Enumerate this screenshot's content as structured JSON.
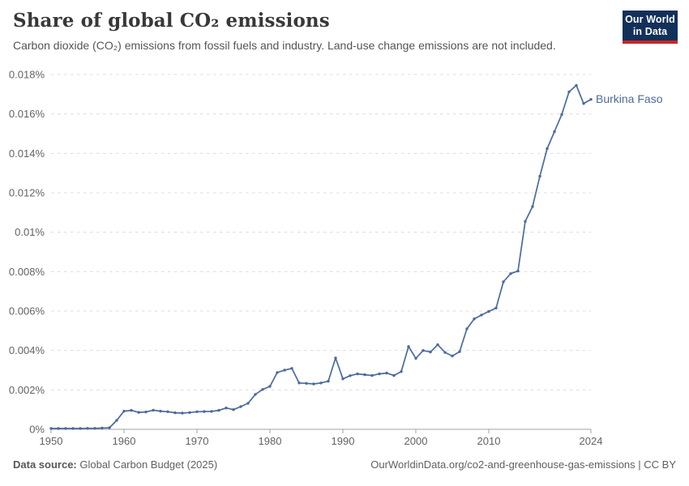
{
  "header": {
    "title": "Share of global CO₂ emissions",
    "subtitle": "Carbon dioxide (CO₂) emissions from fossil fuels and industry. Land-use change emissions are not included.",
    "logo": {
      "line1": "Our World",
      "line2": "in Data"
    }
  },
  "footer": {
    "source_label": "Data source:",
    "source_value": " Global Carbon Budget (2025)",
    "credit": "OurWorldinData.org/co2-and-greenhouse-gas-emissions | CC BY"
  },
  "chart_data": {
    "type": "line",
    "title": "Share of global CO₂ emissions",
    "xlabel": "",
    "ylabel": "",
    "xlim": [
      1950,
      2024
    ],
    "ylim": [
      0,
      0.018
    ],
    "grid": true,
    "line_color": "#4C6A9C",
    "xticks": [
      {
        "value": 1950,
        "label": "1950"
      },
      {
        "value": 1960,
        "label": "1960"
      },
      {
        "value": 1970,
        "label": "1970"
      },
      {
        "value": 1980,
        "label": "1980"
      },
      {
        "value": 1990,
        "label": "1990"
      },
      {
        "value": 2000,
        "label": "2000"
      },
      {
        "value": 2010,
        "label": "2010"
      },
      {
        "value": 2024,
        "label": "2024"
      }
    ],
    "yticks": [
      {
        "value": 0,
        "label": "0%"
      },
      {
        "value": 0.002,
        "label": "0.002%"
      },
      {
        "value": 0.004,
        "label": "0.004%"
      },
      {
        "value": 0.006,
        "label": "0.006%"
      },
      {
        "value": 0.008,
        "label": "0.008%"
      },
      {
        "value": 0.01,
        "label": "0.01%"
      },
      {
        "value": 0.012,
        "label": "0.012%"
      },
      {
        "value": 0.014,
        "label": "0.014%"
      },
      {
        "value": 0.016,
        "label": "0.016%"
      },
      {
        "value": 0.018,
        "label": "0.018%"
      }
    ],
    "series": [
      {
        "name": "Burkina Faso",
        "unit": "% of global CO₂ emissions",
        "years": [
          1950,
          1951,
          1952,
          1953,
          1954,
          1955,
          1956,
          1957,
          1958,
          1959,
          1960,
          1961,
          1962,
          1963,
          1964,
          1965,
          1966,
          1967,
          1968,
          1969,
          1970,
          1971,
          1972,
          1973,
          1974,
          1975,
          1976,
          1977,
          1978,
          1979,
          1980,
          1981,
          1982,
          1983,
          1984,
          1985,
          1986,
          1987,
          1988,
          1989,
          1990,
          1991,
          1992,
          1993,
          1994,
          1995,
          1996,
          1997,
          1998,
          1999,
          2000,
          2001,
          2002,
          2003,
          2004,
          2005,
          2006,
          2007,
          2008,
          2009,
          2010,
          2011,
          2012,
          2013,
          2014,
          2015,
          2016,
          2017,
          2018,
          2019,
          2020,
          2021,
          2022,
          2023,
          2024
        ],
        "values": [
          4e-05,
          4e-05,
          4e-05,
          4e-05,
          4e-05,
          5e-05,
          5e-05,
          6e-05,
          8e-05,
          0.00045,
          0.00092,
          0.00096,
          0.00086,
          0.00088,
          0.00097,
          0.00092,
          0.00089,
          0.00084,
          0.00082,
          0.00085,
          0.00089,
          0.0009,
          0.00091,
          0.00096,
          0.00108,
          0.001,
          0.00115,
          0.00132,
          0.00177,
          0.00202,
          0.00218,
          0.00288,
          0.003,
          0.00309,
          0.00235,
          0.00233,
          0.0023,
          0.00235,
          0.00244,
          0.00362,
          0.00256,
          0.00272,
          0.00281,
          0.00277,
          0.00273,
          0.00281,
          0.00285,
          0.00273,
          0.00293,
          0.0042,
          0.0036,
          0.004,
          0.00392,
          0.00429,
          0.0039,
          0.00372,
          0.00394,
          0.0051,
          0.0056,
          0.0058,
          0.00598,
          0.00615,
          0.00748,
          0.0079,
          0.00803,
          0.01055,
          0.0113,
          0.01284,
          0.01424,
          0.0151,
          0.01597,
          0.01712,
          0.01745,
          0.01653,
          0.01674
        ]
      }
    ]
  }
}
